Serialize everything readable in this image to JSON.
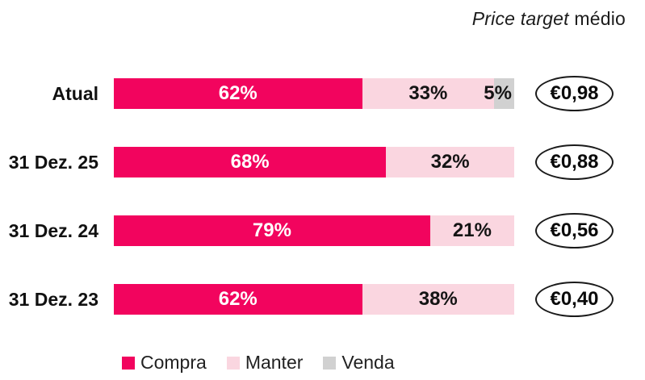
{
  "title": {
    "italic_part": "Price target",
    "regular_part": " médio"
  },
  "chart_data": {
    "type": "bar",
    "orientation": "horizontal",
    "stacked": true,
    "title": "Price target médio",
    "categories": [
      "Atual",
      "31 Dez. 25",
      "31 Dez. 24",
      "31 Dez. 23"
    ],
    "series": [
      {
        "name": "Compra",
        "color": "#F2045E",
        "values": [
          62,
          68,
          79,
          62
        ]
      },
      {
        "name": "Manter",
        "color": "#FAD6E0",
        "values": [
          33,
          32,
          21,
          38
        ]
      },
      {
        "name": "Venda",
        "color": "#D1D1D1",
        "values": [
          5,
          0,
          0,
          0
        ]
      }
    ],
    "value_unit": "%",
    "xlim": [
      0,
      100
    ],
    "grid": false,
    "legend_position": "bottom",
    "price_targets": [
      "€0,98",
      "€0,88",
      "€0,56",
      "€0,40"
    ]
  },
  "rows": [
    {
      "category": "Atual",
      "price_target": "€0,98",
      "segments": [
        {
          "series": "Compra",
          "value": 62,
          "label": "62%"
        },
        {
          "series": "Manter",
          "value": 33,
          "label": "33%"
        },
        {
          "series": "Venda",
          "value": 5,
          "label": "5%"
        }
      ]
    },
    {
      "category": "31 Dez. 25",
      "price_target": "€0,88",
      "segments": [
        {
          "series": "Compra",
          "value": 68,
          "label": "68%"
        },
        {
          "series": "Manter",
          "value": 32,
          "label": "32%"
        }
      ]
    },
    {
      "category": "31 Dez. 24",
      "price_target": "€0,56",
      "segments": [
        {
          "series": "Compra",
          "value": 79,
          "label": "79%"
        },
        {
          "series": "Manter",
          "value": 21,
          "label": "21%"
        }
      ]
    },
    {
      "category": "31 Dez. 23",
      "price_target": "€0,40",
      "segments": [
        {
          "series": "Compra",
          "value": 62,
          "label": "62%"
        },
        {
          "series": "Manter",
          "value": 38,
          "label": "38%"
        }
      ]
    }
  ],
  "legend": {
    "items": [
      {
        "label": "Compra",
        "color": "#F2045E"
      },
      {
        "label": "Manter",
        "color": "#FAD6E0"
      },
      {
        "label": "Venda",
        "color": "#D1D1D1"
      }
    ]
  }
}
